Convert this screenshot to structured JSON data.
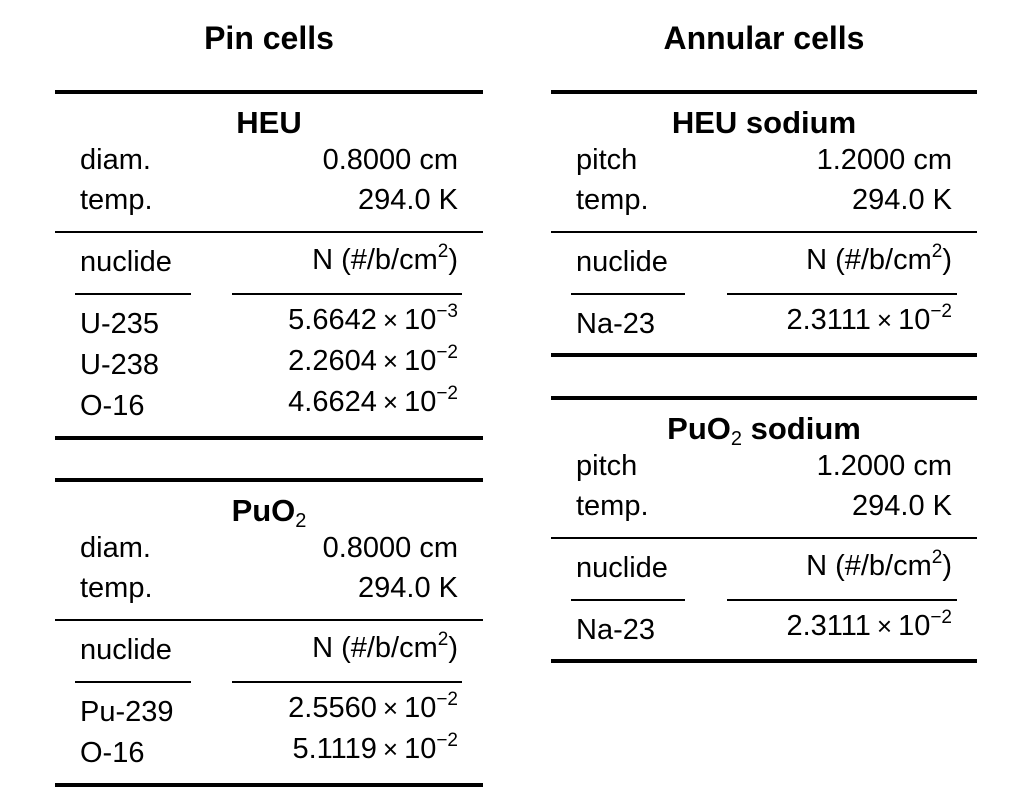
{
  "columns": {
    "pin": {
      "title": "Pin cells"
    },
    "annular": {
      "title": "Annular cells"
    }
  },
  "headers": {
    "nuclide": "nuclide",
    "density": "N (#/b/cm",
    "density_exp": "2",
    "density_close": ")"
  },
  "times_symbol": "×",
  "pin_heu": {
    "title": "HEU",
    "row1_label": "diam.",
    "row1_value": "0.8000 cm",
    "row2_label": "temp.",
    "row2_value": "294.0 K",
    "nuclides": [
      {
        "name": "U-235",
        "mantissa": "5.6642",
        "base": "10",
        "exp": "−3"
      },
      {
        "name": "U-238",
        "mantissa": "2.2604",
        "base": "10",
        "exp": "−2"
      },
      {
        "name": "O-16",
        "mantissa": "4.6624",
        "base": "10",
        "exp": "−2"
      }
    ]
  },
  "pin_puo2": {
    "title": "PuO",
    "title_sub": "2",
    "row1_label": "diam.",
    "row1_value": "0.8000 cm",
    "row2_label": "temp.",
    "row2_value": "294.0 K",
    "nuclides": [
      {
        "name": "Pu-239",
        "mantissa": "2.5560",
        "base": "10",
        "exp": "−2"
      },
      {
        "name": "O-16",
        "mantissa": "5.1119",
        "base": "10",
        "exp": "−2"
      }
    ]
  },
  "ann_heu": {
    "title": "HEU sodium",
    "row1_label": "pitch",
    "row1_value": "1.2000 cm",
    "row2_label": "temp.",
    "row2_value": "294.0 K",
    "nuclides": [
      {
        "name": "Na-23",
        "mantissa": "2.3111",
        "base": "10",
        "exp": "−2"
      }
    ]
  },
  "ann_puo2": {
    "title": "PuO",
    "title_sub": "2",
    "title_rest": " sodium",
    "row1_label": "pitch",
    "row1_value": "1.2000 cm",
    "row2_label": "temp.",
    "row2_value": "294.0 K",
    "nuclides": [
      {
        "name": "Na-23",
        "mantissa": "2.3111",
        "base": "10",
        "exp": "−2"
      }
    ]
  }
}
